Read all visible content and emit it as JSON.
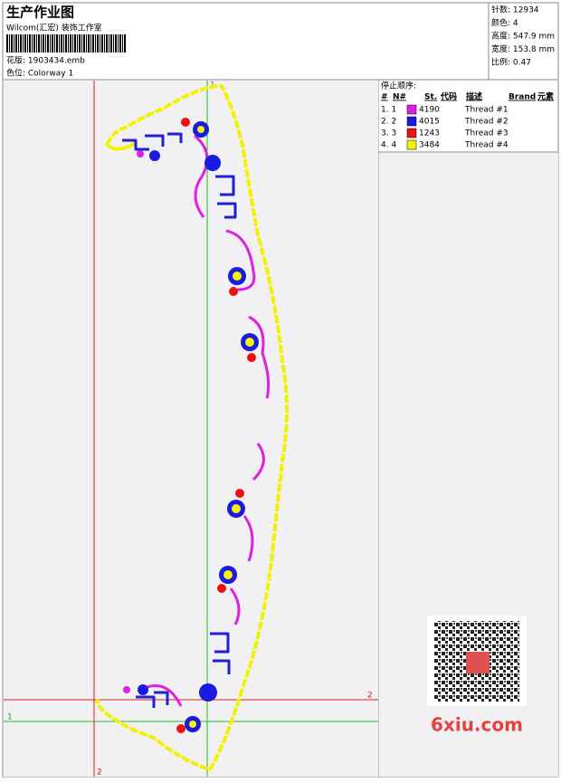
{
  "header": {
    "title": "生产作业图",
    "studio": "Wilcom(汇宏) 装饰工作室",
    "design_file": "花版: 1903434.emb",
    "colorway": "色位: Colorway 1"
  },
  "info": [
    "针数: 12934",
    "颜色: 4",
    "高度: 547.9 mm",
    "宽度: 153.8 mm",
    "比例: 0.47"
  ],
  "thread_table": {
    "caption": "停止顺序:",
    "headers": [
      "#",
      "N#",
      "St.",
      "代码",
      "描述",
      "Brand",
      "元素"
    ],
    "rows": [
      {
        "stop": "1. 1",
        "color": "#e020e0",
        "code": "4190",
        "desc": "Thread #1"
      },
      {
        "stop": "2. 2",
        "color": "#1a1ae0",
        "code": "4015",
        "desc": "Thread #2"
      },
      {
        "stop": "3. 3",
        "color": "#ee1111",
        "code": "1243",
        "desc": "Thread #3"
      },
      {
        "stop": "4. 4",
        "color": "#f4f400",
        "code": "3484",
        "desc": "Thread #4"
      }
    ]
  },
  "guides": {
    "top_green": "1",
    "right_red": "2",
    "left_green": "1",
    "bottom_red": "2"
  },
  "watermark": "6xiu.com"
}
